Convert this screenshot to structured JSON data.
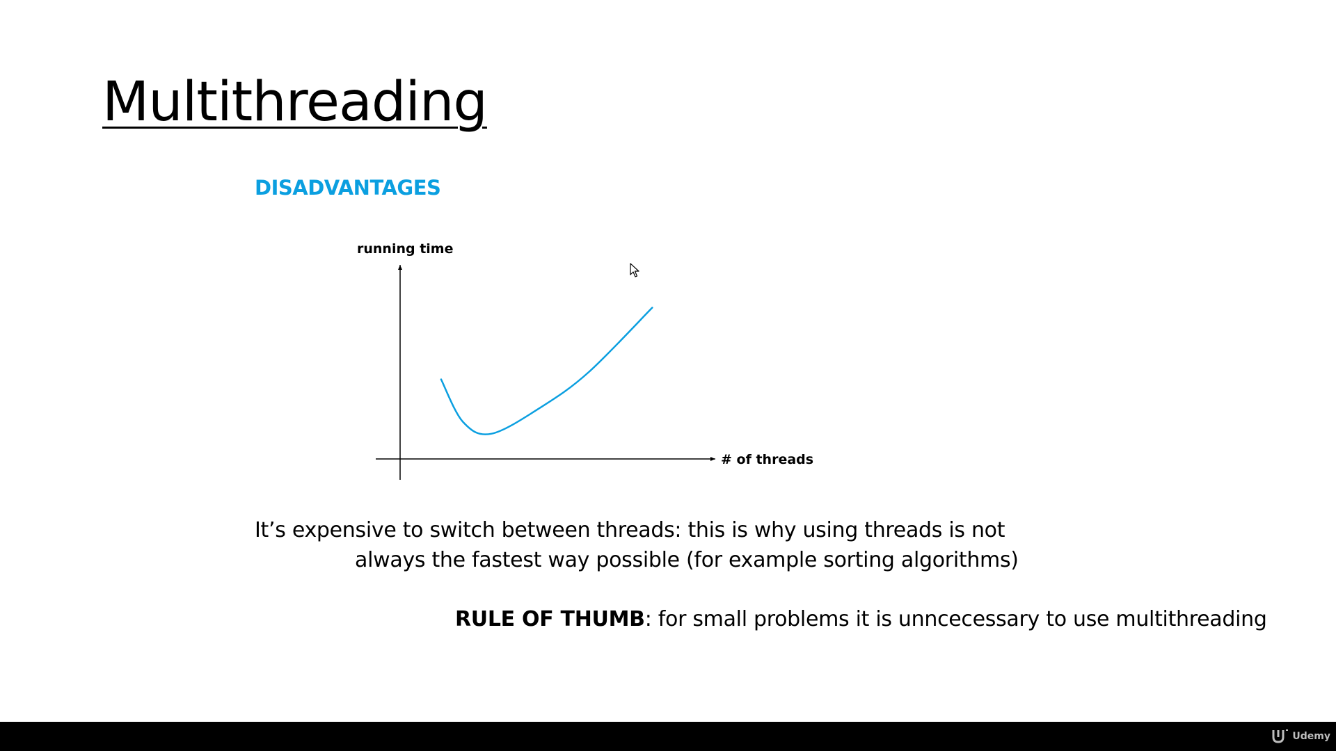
{
  "slide": {
    "title": "Multithreading",
    "subtitle": "DISADVANTAGES",
    "body_line_1": "It’s expensive to switch between threads: this is why using threads is not",
    "body_line_2": "always the fastest way possible (for example sorting algorithms)",
    "rule_label": "RULE OF THUMB",
    "rule_text": ": for small problems it is unncecessary to use multithreading",
    "accent_color": "#0b9fe0"
  },
  "chart_data": {
    "type": "line",
    "ylabel": "running time",
    "xlabel": "# of threads",
    "grid": false,
    "legend": "none",
    "series": [
      {
        "color": "#0b9fe0",
        "points": [
          [
            0.13,
            0.41
          ],
          [
            0.2,
            0.19
          ],
          [
            0.29,
            0.13
          ],
          [
            0.45,
            0.27
          ],
          [
            0.6,
            0.45
          ],
          [
            0.8,
            0.78
          ]
        ]
      }
    ]
  },
  "footer": {
    "brand": "Udemy",
    "icon": "udemy-logo-icon"
  },
  "cursor": {
    "icon": "mouse-pointer-icon"
  }
}
